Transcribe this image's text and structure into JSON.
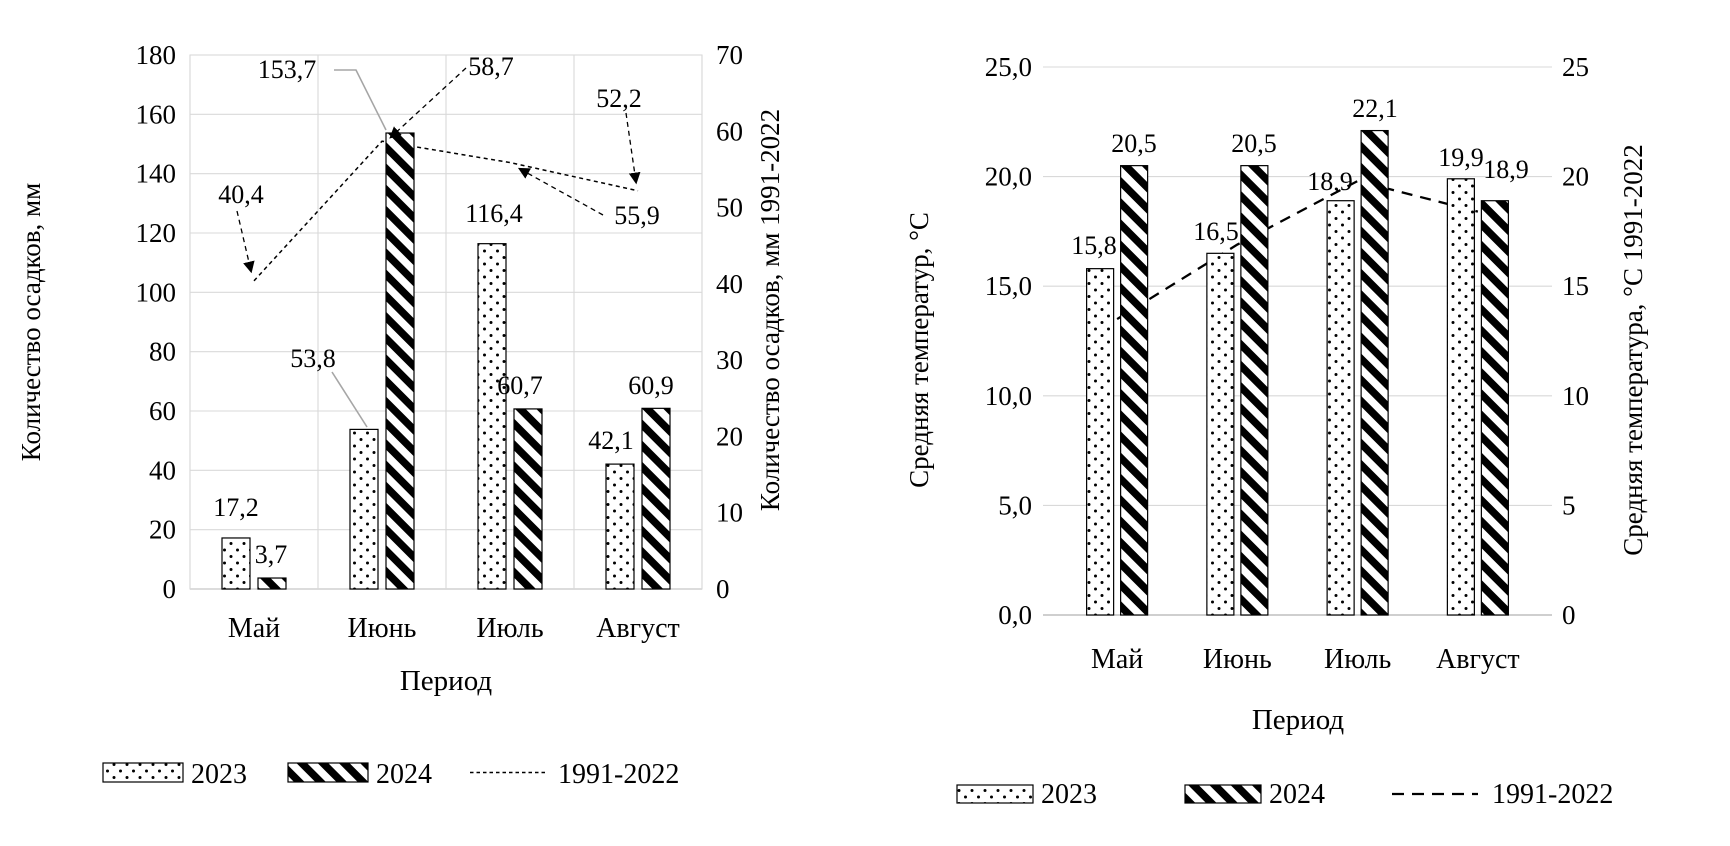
{
  "figure": {
    "background": "#ffffff"
  },
  "colors": {
    "text": "#000000",
    "gridline": "#d9d9d9",
    "axis_line": "#bfbfbf",
    "leader_gray": "#a6a6a6",
    "bar_fill": "#ffffff",
    "pattern_ink": "#000000"
  },
  "chart_data": [
    {
      "type": "bar",
      "subtype": "grouped-bars-with-dashed-line",
      "categories": [
        "Май",
        "Июнь",
        "Июль",
        "Август"
      ],
      "x_axis_title": "Период",
      "y_axis_title_left": "Количество осадков, мм",
      "y_axis_title_right": "Количество осадков, мм 1991-2022",
      "y_axis_left": {
        "min": 0,
        "max": 180,
        "step": 20,
        "tick_labels": [
          "0",
          "20",
          "40",
          "60",
          "80",
          "100",
          "120",
          "140",
          "160",
          "180"
        ]
      },
      "y_axis_right": {
        "min": 0,
        "max": 70,
        "step": 10,
        "tick_labels": [
          "0",
          "10",
          "20",
          "30",
          "40",
          "50",
          "60",
          "70"
        ]
      },
      "grid": "horizontal-and-vertical",
      "series": [
        {
          "name": "2023",
          "type": "bar",
          "pattern": "dots",
          "axis": "left",
          "values": [
            17.2,
            53.8,
            116.4,
            42.1
          ],
          "labels": [
            "17,2",
            "53,8",
            "116,4",
            "42,1"
          ]
        },
        {
          "name": "2024",
          "type": "bar",
          "pattern": "diagonal",
          "axis": "left",
          "values": [
            3.7,
            153.7,
            60.7,
            60.9
          ],
          "labels": [
            "3,7",
            "153,7",
            "60,7",
            "60,9"
          ]
        },
        {
          "name": "1991-2022",
          "type": "line",
          "style": "dashed",
          "axis": "right",
          "values": [
            40.4,
            58.7,
            55.9,
            52.2
          ],
          "labels": [
            "40,4",
            "58,7",
            "55,9",
            "52,2"
          ]
        }
      ],
      "legend": [
        {
          "label": "2023",
          "swatch": "dots"
        },
        {
          "label": "2024",
          "swatch": "diagonal"
        },
        {
          "label": "1991-2022",
          "swatch": "dash-line"
        }
      ],
      "legend_position": "bottom"
    },
    {
      "type": "bar",
      "subtype": "grouped-bars-with-dashed-line",
      "categories": [
        "Май",
        "Июнь",
        "Июль",
        "Август"
      ],
      "x_axis_title": "Период",
      "y_axis_title_left": "Средняя температур, °С",
      "y_axis_title_right": "Средняя температура, °С 1991-2022",
      "y_axis_left": {
        "min": 0,
        "max": 25,
        "step": 5,
        "tick_labels": [
          "0,0",
          "5,0",
          "10,0",
          "15,0",
          "20,0",
          "25,0"
        ]
      },
      "y_axis_right": {
        "min": 0,
        "max": 25,
        "step": 5,
        "tick_labels": [
          "0",
          "5",
          "10",
          "15",
          "20",
          "25"
        ]
      },
      "grid": "horizontal",
      "series": [
        {
          "name": "2023",
          "type": "bar",
          "pattern": "dots",
          "axis": "left",
          "values": [
            15.8,
            16.5,
            18.9,
            19.9
          ],
          "labels": [
            "15,8",
            "16,5",
            "18,9",
            "19,9"
          ]
        },
        {
          "name": "2024",
          "type": "bar",
          "pattern": "diagonal",
          "axis": "left",
          "values": [
            20.5,
            20.5,
            22.1,
            18.9
          ],
          "labels": [
            "20,5",
            "20,5",
            "22,1",
            "18,9"
          ]
        },
        {
          "name": "1991-2022",
          "type": "line",
          "style": "dashed",
          "axis": "right",
          "values": [
            13.5,
            16.9,
            19.8,
            18.4
          ],
          "labels": null
        }
      ],
      "legend": [
        {
          "label": "2023",
          "swatch": "dots"
        },
        {
          "label": "2024",
          "swatch": "diagonal"
        },
        {
          "label": "1991-2022",
          "swatch": "dash-line"
        }
      ],
      "legend_position": "bottom"
    }
  ]
}
